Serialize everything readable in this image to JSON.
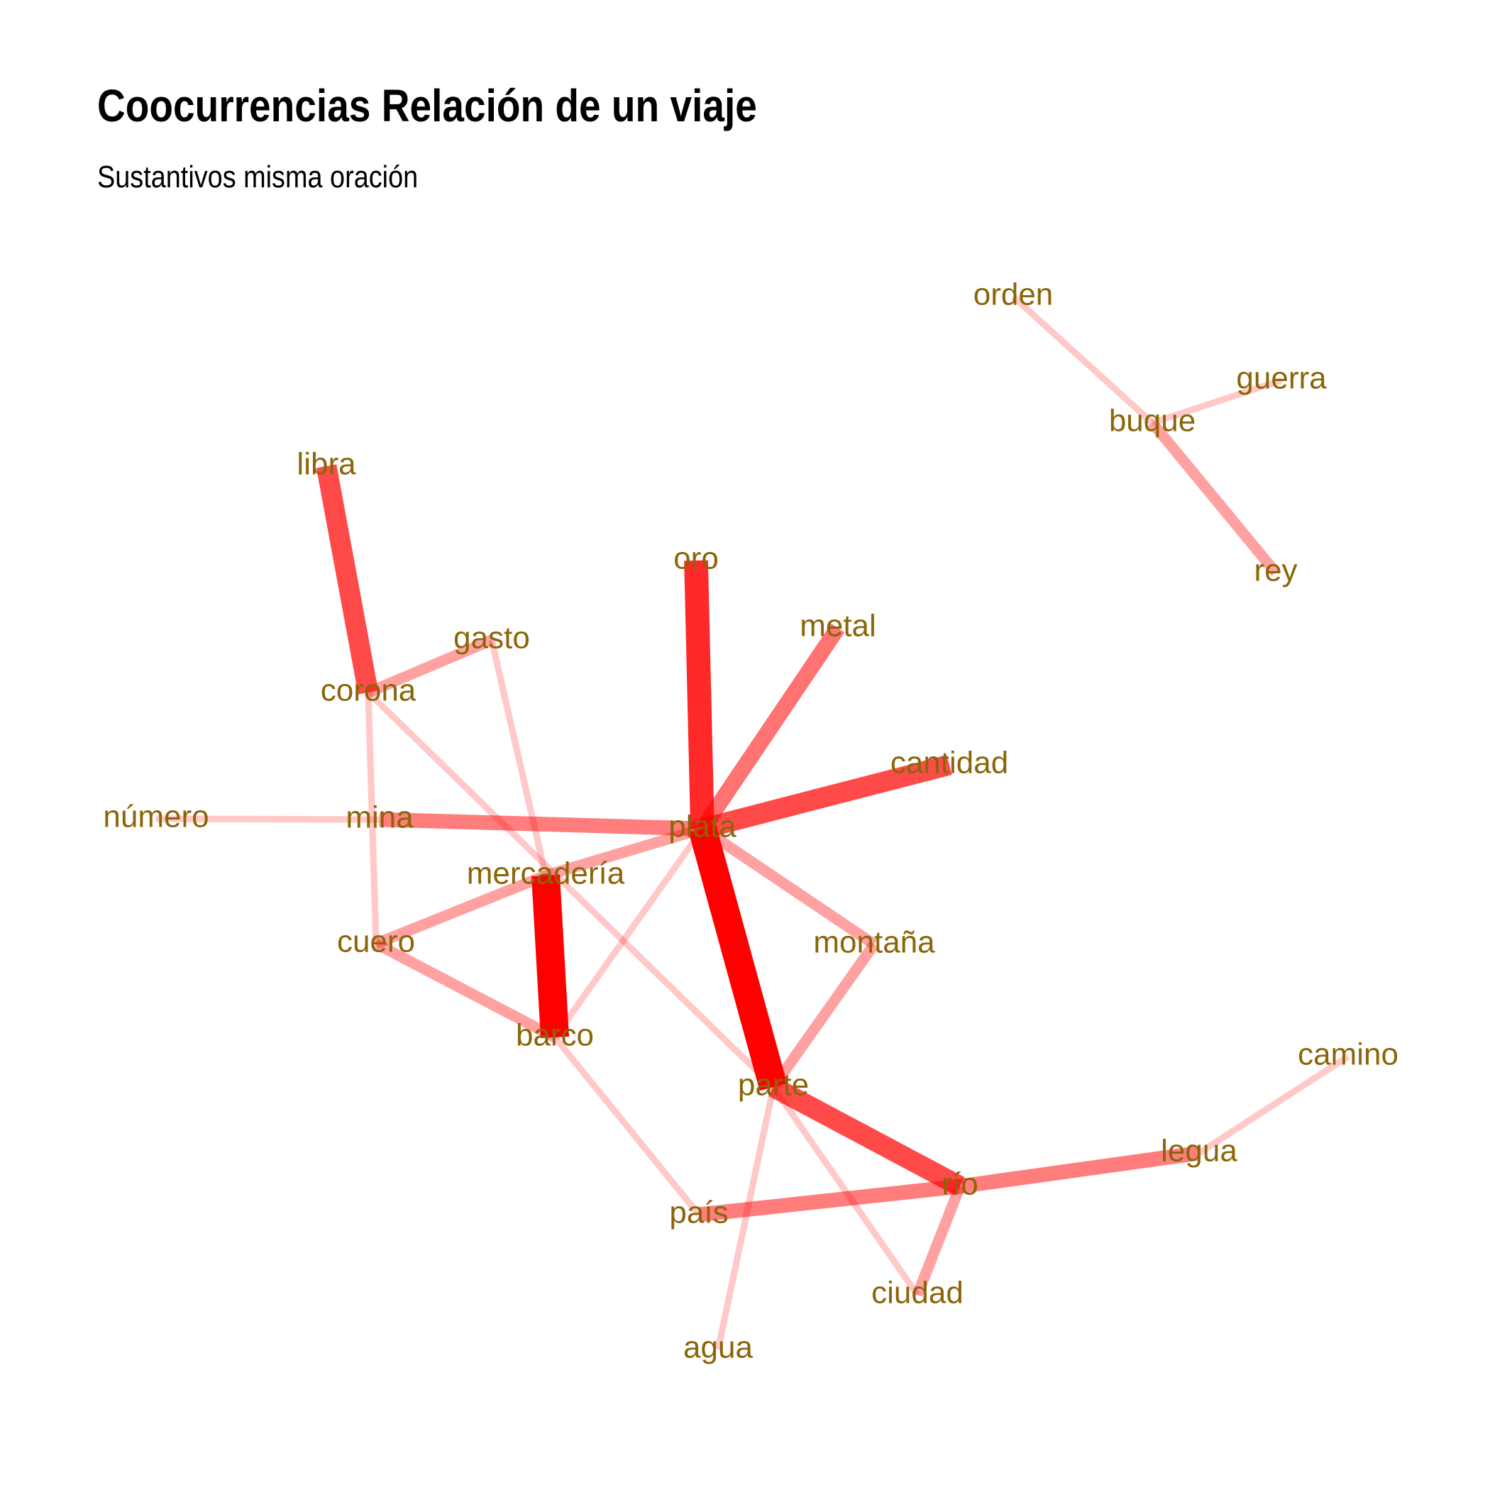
{
  "title": "Coocurrencias Relación de un viaje",
  "subtitle": "Sustantivos misma oración",
  "colors": {
    "edge": "#ff0000",
    "label": "#8b6508",
    "background": "#ffffff"
  },
  "nodes": [
    {
      "id": "orden",
      "label": "orden"
    },
    {
      "id": "guerra",
      "label": "guerra"
    },
    {
      "id": "buque",
      "label": "buque"
    },
    {
      "id": "rey",
      "label": "rey"
    },
    {
      "id": "libra",
      "label": "libra"
    },
    {
      "id": "oro",
      "label": "oro"
    },
    {
      "id": "metal",
      "label": "metal"
    },
    {
      "id": "gasto",
      "label": "gasto"
    },
    {
      "id": "corona",
      "label": "corona"
    },
    {
      "id": "cantidad",
      "label": "cantidad"
    },
    {
      "id": "numero",
      "label": "número"
    },
    {
      "id": "mina",
      "label": "mina"
    },
    {
      "id": "plata",
      "label": "plata"
    },
    {
      "id": "mercaderia",
      "label": "mercadería"
    },
    {
      "id": "cuero",
      "label": "cuero"
    },
    {
      "id": "montana",
      "label": "montaña"
    },
    {
      "id": "barco",
      "label": "barco"
    },
    {
      "id": "parte",
      "label": "parte"
    },
    {
      "id": "camino",
      "label": "camino"
    },
    {
      "id": "legua",
      "label": "legua"
    },
    {
      "id": "rio",
      "label": "río"
    },
    {
      "id": "pais",
      "label": "país"
    },
    {
      "id": "ciudad",
      "label": "ciudad"
    },
    {
      "id": "agua",
      "label": "agua"
    }
  ],
  "edges": [
    {
      "source": "plata",
      "target": "parte",
      "weight": 1.0
    },
    {
      "source": "mercaderia",
      "target": "barco",
      "weight": 1.0
    },
    {
      "source": "oro",
      "target": "plata",
      "weight": 0.82
    },
    {
      "source": "libra",
      "target": "corona",
      "weight": 0.68
    },
    {
      "source": "parte",
      "target": "rio",
      "weight": 0.68
    },
    {
      "source": "cantidad",
      "target": "plata",
      "weight": 0.68
    },
    {
      "source": "metal",
      "target": "plata",
      "weight": 0.5
    },
    {
      "source": "mina",
      "target": "plata",
      "weight": 0.45
    },
    {
      "source": "rio",
      "target": "legua",
      "weight": 0.45
    },
    {
      "source": "pais",
      "target": "rio",
      "weight": 0.45
    },
    {
      "source": "plata",
      "target": "mercaderia",
      "weight": 0.3
    },
    {
      "source": "plata",
      "target": "montana",
      "weight": 0.3
    },
    {
      "source": "montana",
      "target": "parte",
      "weight": 0.3
    },
    {
      "source": "cuero",
      "target": "mercaderia",
      "weight": 0.3
    },
    {
      "source": "cuero",
      "target": "barco",
      "weight": 0.3
    },
    {
      "source": "rio",
      "target": "ciudad",
      "weight": 0.3
    },
    {
      "source": "buque",
      "target": "rey",
      "weight": 0.3
    },
    {
      "source": "corona",
      "target": "gasto",
      "weight": 0.3
    },
    {
      "source": "numero",
      "target": "mina",
      "weight": 0.12
    },
    {
      "source": "orden",
      "target": "buque",
      "weight": 0.12
    },
    {
      "source": "buque",
      "target": "guerra",
      "weight": 0.12
    },
    {
      "source": "legua",
      "target": "camino",
      "weight": 0.12
    },
    {
      "source": "gasto",
      "target": "mercaderia",
      "weight": 0.12
    },
    {
      "source": "corona",
      "target": "cuero",
      "weight": 0.12
    },
    {
      "source": "corona",
      "target": "parte",
      "weight": 0.12
    },
    {
      "source": "plata",
      "target": "barco",
      "weight": 0.12
    },
    {
      "source": "barco",
      "target": "pais",
      "weight": 0.12
    },
    {
      "source": "parte",
      "target": "agua",
      "weight": 0.12
    },
    {
      "source": "parte",
      "target": "ciudad",
      "weight": 0.12
    }
  ]
}
